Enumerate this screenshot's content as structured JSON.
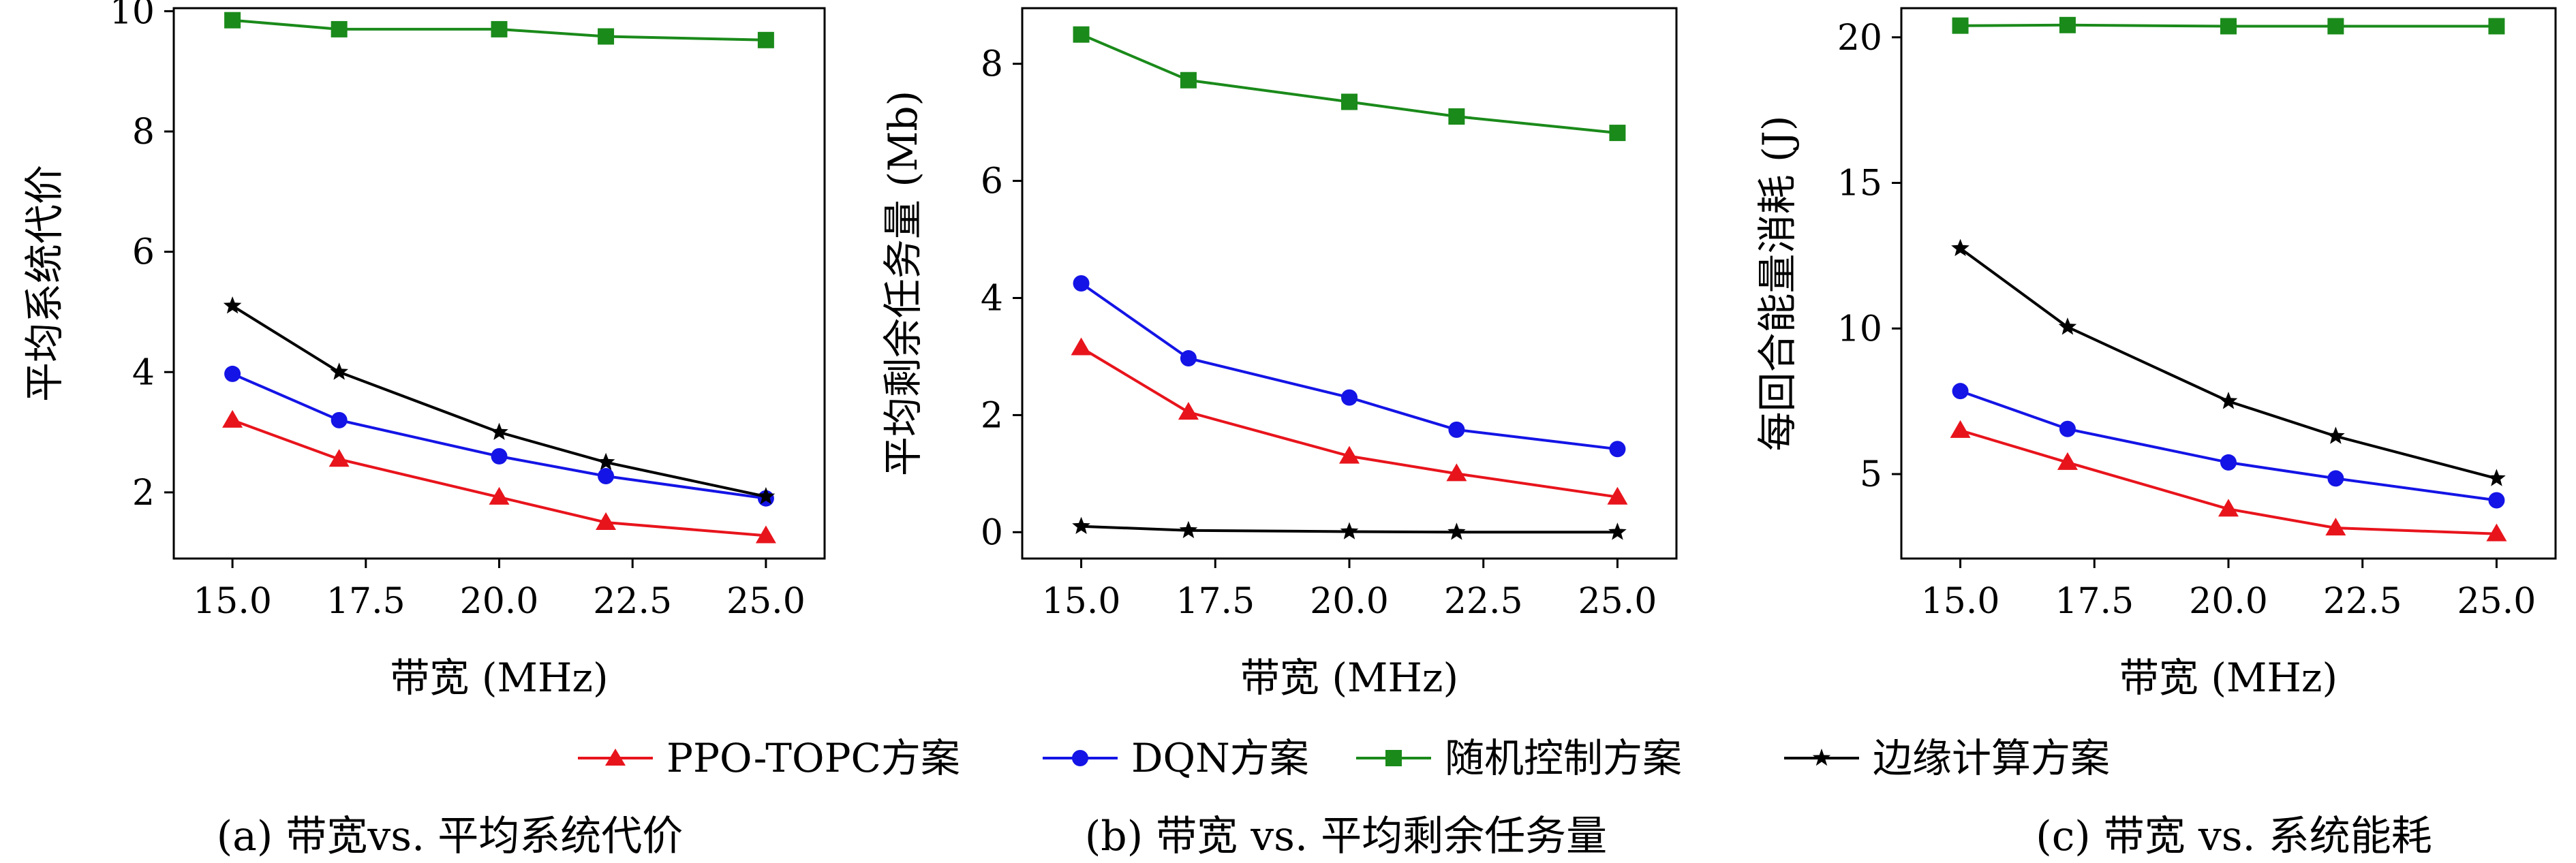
{
  "chart_data": [
    {
      "type": "line",
      "panel": "a",
      "caption": "(a) 带宽vs. 平均系统代价",
      "xlabel": "带宽 (MHz)",
      "ylabel": "平均系统代价",
      "x": [
        15.0,
        17.0,
        20.0,
        22.0,
        25.0
      ],
      "xlim": [
        13.9,
        26.1
      ],
      "ylim": [
        0.9,
        10.05
      ],
      "xticks": [
        15.0,
        17.5,
        20.0,
        22.5,
        25.0
      ],
      "xtick_labels": [
        "15.0",
        "17.5",
        "20.0",
        "22.5",
        "25.0"
      ],
      "yticks": [
        2,
        4,
        6,
        8,
        10
      ],
      "ytick_labels": [
        "2",
        "4",
        "6",
        "8",
        "10"
      ],
      "grid": false,
      "series": [
        {
          "name": "PPO-TOPC方案",
          "color": "#e8141c",
          "marker": "triangle",
          "values": [
            3.2,
            2.55,
            1.92,
            1.5,
            1.28
          ]
        },
        {
          "name": "DQN方案",
          "color": "#1414e6",
          "marker": "circle",
          "values": [
            3.97,
            3.2,
            2.6,
            2.27,
            1.9
          ]
        },
        {
          "name": "随机控制方案",
          "color": "#1a8a1a",
          "marker": "square",
          "values": [
            9.85,
            9.7,
            9.7,
            9.58,
            9.52
          ]
        },
        {
          "name": "边缘计算方案",
          "color": "#000000",
          "marker": "star",
          "values": [
            5.1,
            4.0,
            3.0,
            2.5,
            1.93
          ]
        }
      ]
    },
    {
      "type": "line",
      "panel": "b",
      "caption": "(b) 带宽 vs. 平均剩余任务量",
      "xlabel": "带宽 (MHz)",
      "ylabel": "平均剩余任务量 (Mb)",
      "x": [
        15.0,
        17.0,
        20.0,
        22.0,
        25.0
      ],
      "xlim": [
        13.9,
        26.1
      ],
      "ylim": [
        -0.45,
        8.95
      ],
      "xticks": [
        15.0,
        17.5,
        20.0,
        22.5,
        25.0
      ],
      "xtick_labels": [
        "15.0",
        "17.5",
        "20.0",
        "22.5",
        "25.0"
      ],
      "yticks": [
        0,
        2,
        4,
        6,
        8
      ],
      "ytick_labels": [
        "0",
        "2",
        "4",
        "6",
        "8"
      ],
      "grid": false,
      "series": [
        {
          "name": "PPO-TOPC方案",
          "color": "#e8141c",
          "marker": "triangle",
          "values": [
            3.15,
            2.05,
            1.3,
            1.0,
            0.6
          ]
        },
        {
          "name": "DQN方案",
          "color": "#1414e6",
          "marker": "circle",
          "values": [
            4.25,
            2.97,
            2.3,
            1.75,
            1.42
          ]
        },
        {
          "name": "随机控制方案",
          "color": "#1a8a1a",
          "marker": "square",
          "values": [
            8.5,
            7.72,
            7.35,
            7.1,
            6.82
          ]
        },
        {
          "name": "边缘计算方案",
          "color": "#000000",
          "marker": "star",
          "values": [
            0.1,
            0.03,
            0.01,
            0.0,
            0.0
          ]
        }
      ]
    },
    {
      "type": "line",
      "panel": "c",
      "caption": "(c) 带宽 vs. 系统能耗",
      "xlabel": "带宽 (MHz)",
      "ylabel": "每回合能量消耗 (J)",
      "x": [
        15.0,
        17.0,
        20.0,
        22.0,
        25.0
      ],
      "xlim": [
        13.9,
        26.1
      ],
      "ylim": [
        2.1,
        21.0
      ],
      "xticks": [
        15.0,
        17.5,
        20.0,
        22.5,
        25.0
      ],
      "xtick_labels": [
        "15.0",
        "17.5",
        "20.0",
        "22.5",
        "25.0"
      ],
      "yticks": [
        5,
        10,
        15,
        20
      ],
      "ytick_labels": [
        "5",
        "10",
        "15",
        "20"
      ],
      "grid": false,
      "series": [
        {
          "name": "PPO-TOPC方案",
          "color": "#e8141c",
          "marker": "triangle",
          "values": [
            6.5,
            5.4,
            3.8,
            3.15,
            2.95
          ]
        },
        {
          "name": "DQN方案",
          "color": "#1414e6",
          "marker": "circle",
          "values": [
            7.85,
            6.55,
            5.4,
            4.85,
            4.1
          ]
        },
        {
          "name": "随机控制方案",
          "color": "#1a8a1a",
          "marker": "square",
          "values": [
            20.4,
            20.42,
            20.38,
            20.38,
            20.38
          ]
        },
        {
          "name": "边缘计算方案",
          "color": "#000000",
          "marker": "star",
          "values": [
            12.75,
            10.05,
            7.5,
            6.3,
            4.85
          ]
        }
      ]
    }
  ],
  "legend": {
    "placement": "bottom-center",
    "entries": [
      {
        "label": "PPO-TOPC方案",
        "color": "#e8141c",
        "marker": "triangle"
      },
      {
        "label": "DQN方案",
        "color": "#1414e6",
        "marker": "circle"
      },
      {
        "label": "随机控制方案",
        "color": "#1a8a1a",
        "marker": "square"
      },
      {
        "label": "边缘计算方案",
        "color": "#000000",
        "marker": "star"
      }
    ]
  }
}
